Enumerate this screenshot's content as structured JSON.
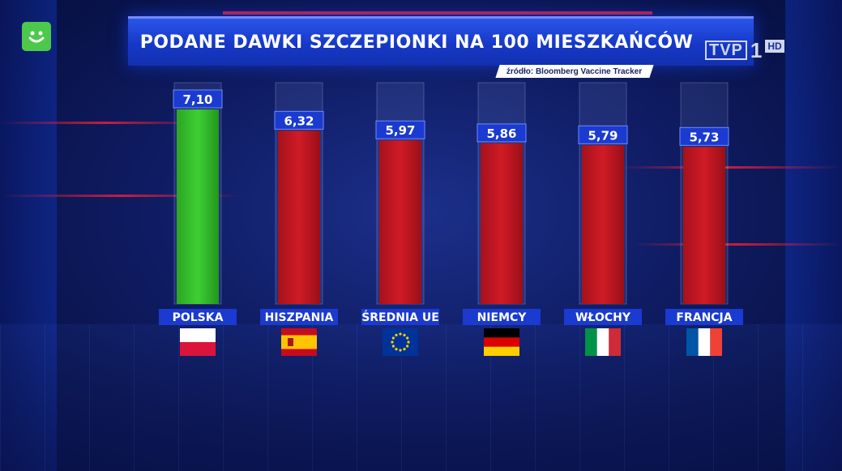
{
  "title": "PODANE DAWKI SZCZEPIONKI NA 100 MIESZKAŃCÓW",
  "source": "źródło: Bloomberg Vaccine Tracker",
  "channel": {
    "name": "TVP",
    "number": "1",
    "quality": "HD"
  },
  "colors": {
    "highlight_bar": "#3ecf34",
    "default_bar": "#d01b26",
    "label_bg": "#1a3ad0"
  },
  "chart_data": {
    "type": "bar",
    "title": "PODANE DAWKI SZCZEPIONKI NA 100 MIESZKAŃCÓW",
    "categories": [
      "POLSKA",
      "HISZPANIA",
      "ŚREDNIA UE",
      "NIEMCY",
      "WŁOCHY",
      "FRANCJA"
    ],
    "values": [
      7.1,
      6.32,
      5.97,
      5.86,
      5.79,
      5.73
    ],
    "value_labels": [
      "7,10",
      "6,32",
      "5,97",
      "5,86",
      "5,79",
      "5,73"
    ],
    "flags": [
      "flag-poland-icon",
      "flag-spain-icon",
      "flag-eu-icon",
      "flag-germany-icon",
      "flag-italy-icon",
      "flag-france-icon"
    ],
    "highlight": "POLSKA",
    "grid": false,
    "legend": "none"
  }
}
